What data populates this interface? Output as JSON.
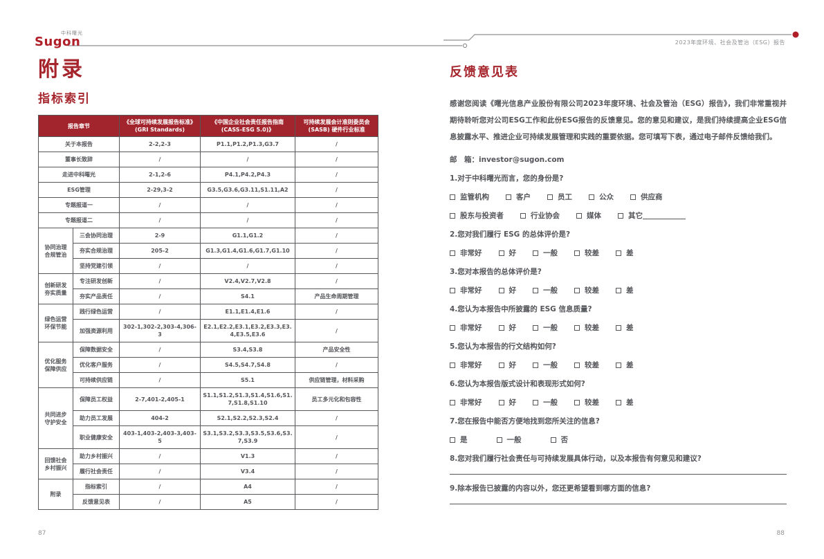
{
  "colors": {
    "brand_red": "#A6242C",
    "table_header_red": "#A2242C",
    "text_gray": "#54565A",
    "muted_gray": "#8f9194"
  },
  "brand": {
    "logo_text": "Sugon",
    "logo_sub": "中科曙光"
  },
  "header": {
    "right_text": "2023年度环境、社会及管治（ESG）报告"
  },
  "footer": {
    "left_page": "87",
    "right_page": "88"
  },
  "appendix": {
    "title": "附录",
    "subtitle": "指标索引",
    "table": {
      "headers": [
        "报告章节",
        "《全球可持续发展报告标准》\n(GRI Standards)",
        "《中国企业社会责任报告指南\n(CASS-ESG 5.0)》",
        "可持续发展会计准则委员会\n(SASB) 硬件行业标准"
      ],
      "sections": [
        {
          "group": null,
          "rows": [
            {
              "chapter": "关于本报告",
              "gri": "2-2,2-3",
              "cass": "P1.1,P1.2,P1.3,G3.7",
              "sasb": "/"
            },
            {
              "chapter": "董事长致辞",
              "gri": "/",
              "cass": "/",
              "sasb": "/"
            },
            {
              "chapter": "走进中科曙光",
              "gri": "2-1,2-6",
              "cass": "P4.1,P4.2,P4.3",
              "sasb": "/"
            },
            {
              "chapter": "ESG管理",
              "gri": "2-29,3-2",
              "cass": "G3.5,G3.6,G3.11,S1.11,A2",
              "sasb": "/"
            },
            {
              "chapter": "专题报道一",
              "gri": "/",
              "cass": "/",
              "sasb": "/"
            },
            {
              "chapter": "专题报道二",
              "gri": "/",
              "cass": "/",
              "sasb": "/"
            }
          ]
        },
        {
          "group": "协同治理\n合规管治",
          "rows": [
            {
              "chapter": "三会协同治理",
              "gri": "2-9",
              "cass": "G1.1,G1.2",
              "sasb": "/"
            },
            {
              "chapter": "夯实合规治理",
              "gri": "205-2",
              "cass": "G1.3,G1.4,G1.6,G1.7,G1.10",
              "sasb": "/"
            },
            {
              "chapter": "坚持党建引领",
              "gri": "/",
              "cass": "/",
              "sasb": "/"
            }
          ]
        },
        {
          "group": "创新研发\n夯实质量",
          "rows": [
            {
              "chapter": "专注研发创新",
              "gri": "/",
              "cass": "V2.4,V2.7,V2.8",
              "sasb": "/"
            },
            {
              "chapter": "夯实产品责任",
              "gri": "/",
              "cass": "S4.1",
              "sasb": "产品生命周期管理"
            }
          ]
        },
        {
          "group": "绿色运营\n环保节能",
          "rows": [
            {
              "chapter": "践行绿色运营",
              "gri": "/",
              "cass": "E1.1,E1.4,E1.6",
              "sasb": "/"
            },
            {
              "chapter": "加强资源利用",
              "gri": "302-1,302-2,303-4,306-3",
              "cass": "E2.1,E2.2,E3.1,E3.2,E3.3,E3.4,E3.5,E3.6",
              "sasb": "/"
            }
          ]
        },
        {
          "group": "优化服务\n保障供应",
          "rows": [
            {
              "chapter": "保障数据安全",
              "gri": "/",
              "cass": "S3.4,S3.8",
              "sasb": "产品安全性"
            },
            {
              "chapter": "优化客户服务",
              "gri": "/",
              "cass": "S4.5,S4.7,S4.8",
              "sasb": "/"
            },
            {
              "chapter": "可持续供应链",
              "gri": "/",
              "cass": "S5.1",
              "sasb": "供应链管理，材料采购"
            }
          ]
        },
        {
          "group": "共同进步\n守护安全",
          "rows": [
            {
              "chapter": "保障员工权益",
              "gri": "2-7,401-2,405-1",
              "cass": "S1.1,S1.2,S1.3,S1.4,S1.6,S1.7,S1.8,S1.10",
              "sasb": "员工多元化和包容性"
            },
            {
              "chapter": "助力员工发展",
              "gri": "404-2",
              "cass": "S2.1,S2.2,S2.3,S2.4",
              "sasb": "/"
            },
            {
              "chapter": "职业健康安全",
              "gri": "403-1,403-2,403-3,403-5",
              "cass": "S3.1,S3.2,S3.3,S3.5,S3.6,S3.7,S3.9",
              "sasb": "/"
            }
          ]
        },
        {
          "group": "回馈社会\n乡村振兴",
          "rows": [
            {
              "chapter": "助力乡村振兴",
              "gri": "/",
              "cass": "V1.3",
              "sasb": "/"
            },
            {
              "chapter": "履行社会责任",
              "gri": "/",
              "cass": "V3.4",
              "sasb": "/"
            }
          ]
        },
        {
          "group": "附录",
          "rows": [
            {
              "chapter": "指标索引",
              "gri": "/",
              "cass": "A4",
              "sasb": "/"
            },
            {
              "chapter": "反馈意见表",
              "gri": "/",
              "cass": "A5",
              "sasb": "/"
            }
          ]
        }
      ]
    }
  },
  "feedback": {
    "title": "反馈意见表",
    "intro": "感谢您阅读《曙光信息产业股份有限公司2023年度环境、社会及管治（ESG）报告》，我们非常重视并期待聆听您对公司ESG工作和此份ESG报告的反馈意见。您的意见和建议，是我们持续提高企业ESG信息披露水平、推进企业可持续发展管理和实践的重要依据。您可填写下表，通过电子邮件反馈给我们。",
    "email_label": "邮　箱：",
    "email": "investor@sugon.com",
    "questions": [
      {
        "text": "1.对于中科曙光而言，您的身份是?",
        "option_rows": [
          [
            {
              "label": "监管机构"
            },
            {
              "label": "客户"
            },
            {
              "label": "员工"
            },
            {
              "label": "公众"
            },
            {
              "label": "供应商"
            }
          ],
          [
            {
              "label": "股东与投资者"
            },
            {
              "label": "行业协会"
            },
            {
              "label": "媒体"
            },
            {
              "label": "其它",
              "blank": true
            }
          ]
        ]
      },
      {
        "text": "2.您对我们履行 ESG 的总体评价是?",
        "option_rows": [
          [
            {
              "label": "非常好"
            },
            {
              "label": "好"
            },
            {
              "label": "一般"
            },
            {
              "label": "较差"
            },
            {
              "label": "差"
            }
          ]
        ]
      },
      {
        "text": "3.您对本报告的总体评价是?",
        "option_rows": [
          [
            {
              "label": "非常好"
            },
            {
              "label": "好"
            },
            {
              "label": "一般"
            },
            {
              "label": "较差"
            },
            {
              "label": "差"
            }
          ]
        ]
      },
      {
        "text": "4.您认为本报告中所披露的 ESG 信息质量?",
        "option_rows": [
          [
            {
              "label": "非常好"
            },
            {
              "label": "好"
            },
            {
              "label": "一般"
            },
            {
              "label": "较差"
            },
            {
              "label": "差"
            }
          ]
        ]
      },
      {
        "text": "5.您认为本报告的行文结构如何?",
        "option_rows": [
          [
            {
              "label": "非常好"
            },
            {
              "label": "好"
            },
            {
              "label": "一般"
            },
            {
              "label": "较差"
            },
            {
              "label": "差"
            }
          ]
        ]
      },
      {
        "text": "6.您认为本报告版式设计和表现形式如何?",
        "option_rows": [
          [
            {
              "label": "非常好"
            },
            {
              "label": "好"
            },
            {
              "label": "一般"
            },
            {
              "label": "较差"
            },
            {
              "label": "差"
            }
          ]
        ]
      },
      {
        "text": "7.您在报告中能否方便地找到您所关注的信息?",
        "option_rows": [
          [
            {
              "label": "是"
            },
            {
              "label": "一般"
            },
            {
              "label": "否"
            }
          ]
        ],
        "wide_gap": true
      },
      {
        "text": "8.您对我们履行社会责任与可持续发展具体行动，以及本报告有何意见和建议?",
        "answer_line": true
      },
      {
        "text": "9.除本报告已披露的内容以外，您还更希望看到哪方面的信息?",
        "answer_line": true
      }
    ]
  }
}
